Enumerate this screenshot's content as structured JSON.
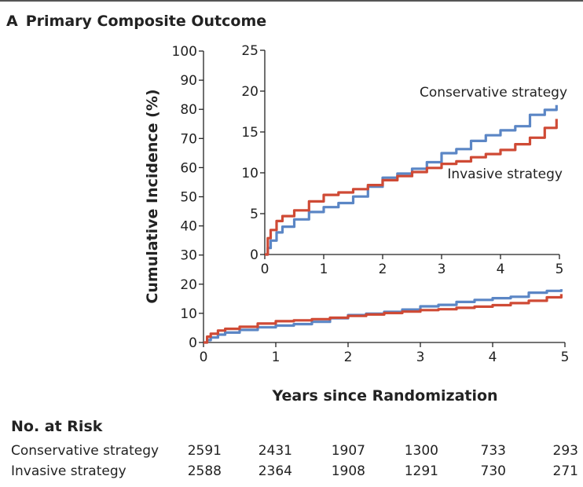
{
  "panel": {
    "letter": "A",
    "title": "Primary Composite Outcome"
  },
  "colors": {
    "conservative": "#5b86c5",
    "invasive": "#cf4a35"
  },
  "chart_data": {
    "type": "line",
    "title": "Primary Composite Outcome",
    "xlabel": "Years since Randomization",
    "ylabel": "Cumulative Incidence (%)",
    "xlim": [
      0,
      5
    ],
    "ylim": [
      0,
      100
    ],
    "xticks": [
      "0",
      "1",
      "2",
      "3",
      "4",
      "5"
    ],
    "yticks": [
      "0",
      "10",
      "20",
      "30",
      "40",
      "50",
      "60",
      "70",
      "80",
      "90",
      "100"
    ],
    "legend": "inline labels",
    "series": [
      {
        "name": "Conservative strategy",
        "x": [
          0,
          0.05,
          0.1,
          0.2,
          0.3,
          0.5,
          0.75,
          1.0,
          1.25,
          1.5,
          1.75,
          2.0,
          2.25,
          2.5,
          2.75,
          3.0,
          3.25,
          3.5,
          3.75,
          4.0,
          4.25,
          4.5,
          4.75,
          4.95
        ],
        "y": [
          0,
          0.8,
          1.7,
          2.7,
          3.4,
          4.3,
          5.2,
          5.8,
          6.3,
          7.1,
          8.3,
          9.4,
          9.9,
          10.5,
          11.3,
          12.4,
          12.9,
          13.9,
          14.6,
          15.2,
          15.7,
          17.1,
          17.7,
          18.3
        ]
      },
      {
        "name": "Invasive strategy",
        "x": [
          0,
          0.05,
          0.1,
          0.2,
          0.3,
          0.5,
          0.75,
          1.0,
          1.25,
          1.5,
          1.75,
          2.0,
          2.25,
          2.5,
          2.75,
          3.0,
          3.25,
          3.5,
          3.75,
          4.0,
          4.25,
          4.5,
          4.75,
          4.95
        ],
        "y": [
          0,
          2.0,
          3.0,
          4.1,
          4.7,
          5.4,
          6.5,
          7.3,
          7.6,
          8.0,
          8.5,
          9.1,
          9.6,
          10.1,
          10.6,
          11.1,
          11.4,
          11.9,
          12.3,
          12.8,
          13.5,
          14.3,
          15.5,
          16.6
        ]
      }
    ],
    "inset": {
      "xlim": [
        0,
        5
      ],
      "ylim": [
        0,
        25
      ],
      "xticks": [
        "0",
        "1",
        "2",
        "3",
        "4",
        "5"
      ],
      "yticks": [
        "0",
        "5",
        "10",
        "15",
        "20",
        "25"
      ]
    }
  },
  "risk_table": {
    "title": "No. at Risk",
    "rows": [
      {
        "label": "Conservative strategy",
        "values": [
          "2591",
          "2431",
          "1907",
          "1300",
          "733",
          "293"
        ]
      },
      {
        "label": "Invasive strategy",
        "values": [
          "2588",
          "2364",
          "1908",
          "1291",
          "730",
          "271"
        ]
      }
    ]
  }
}
